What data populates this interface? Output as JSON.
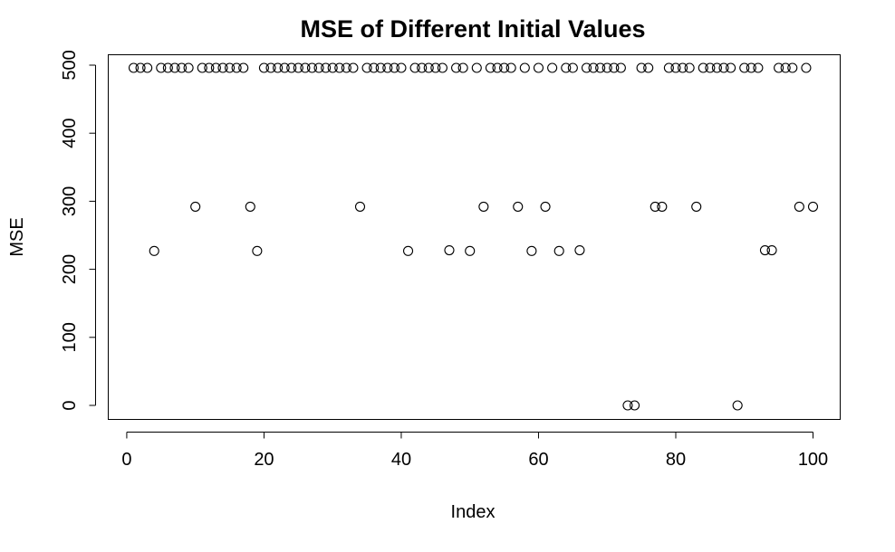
{
  "chart_data": {
    "type": "scatter",
    "title": "MSE of Different Initial Values",
    "xlabel": "Index",
    "ylabel": "MSE",
    "xlim": [
      1,
      100
    ],
    "ylim": [
      0,
      496
    ],
    "x_ticks": [
      0,
      20,
      40,
      60,
      80,
      100
    ],
    "y_ticks": [
      0,
      100,
      200,
      300,
      400,
      500
    ],
    "grid": false,
    "marker": "open-circle",
    "color": "#000000",
    "x": [
      1,
      2,
      3,
      4,
      5,
      6,
      7,
      8,
      9,
      10,
      11,
      12,
      13,
      14,
      15,
      16,
      17,
      18,
      19,
      20,
      21,
      22,
      23,
      24,
      25,
      26,
      27,
      28,
      29,
      30,
      31,
      32,
      33,
      34,
      35,
      36,
      37,
      38,
      39,
      40,
      41,
      42,
      43,
      44,
      45,
      46,
      47,
      48,
      49,
      50,
      51,
      52,
      53,
      54,
      55,
      56,
      57,
      58,
      59,
      60,
      61,
      62,
      63,
      64,
      65,
      66,
      67,
      68,
      69,
      70,
      71,
      72,
      73,
      74,
      75,
      76,
      77,
      78,
      79,
      80,
      81,
      82,
      83,
      84,
      85,
      86,
      87,
      88,
      89,
      90,
      91,
      92,
      93,
      94,
      95,
      96,
      97,
      98,
      99,
      100
    ],
    "y": [
      496,
      496,
      496,
      227,
      496,
      496,
      496,
      496,
      496,
      292,
      496,
      496,
      496,
      496,
      496,
      496,
      496,
      292,
      227,
      496,
      496,
      496,
      496,
      496,
      496,
      496,
      496,
      496,
      496,
      496,
      496,
      496,
      496,
      292,
      496,
      496,
      496,
      496,
      496,
      496,
      227,
      496,
      496,
      496,
      496,
      496,
      228,
      496,
      496,
      227,
      496,
      292,
      496,
      496,
      496,
      496,
      292,
      496,
      227,
      496,
      292,
      496,
      227,
      496,
      496,
      228,
      496,
      496,
      496,
      496,
      496,
      496,
      0,
      0,
      496,
      496,
      292,
      292,
      496,
      496,
      496,
      496,
      292,
      496,
      496,
      496,
      496,
      496,
      0,
      496,
      496,
      496,
      228,
      228,
      496,
      496,
      496,
      292,
      496,
      292
    ]
  }
}
